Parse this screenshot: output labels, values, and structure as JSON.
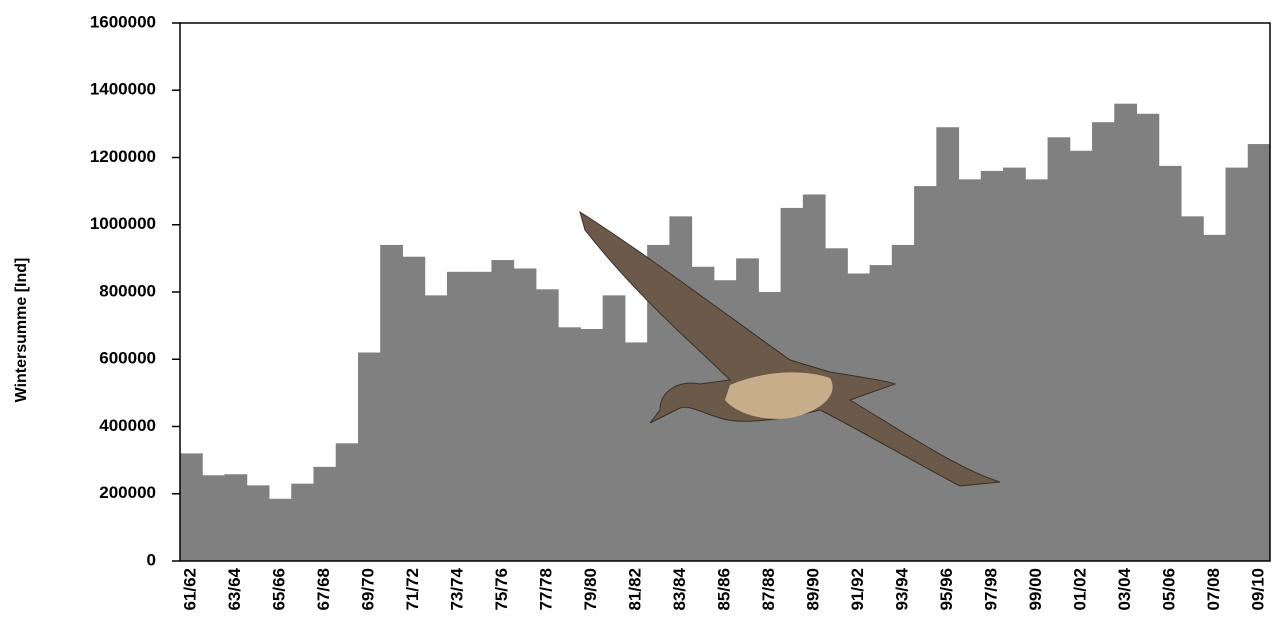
{
  "chart_data": {
    "type": "bar",
    "y_label": "Wintersumme [Ind]",
    "categories": [
      "61/62",
      null,
      "63/64",
      null,
      "65/66",
      null,
      "67/68",
      null,
      "69/70",
      null,
      "71/72",
      null,
      "73/74",
      null,
      "75/76",
      null,
      "77/78",
      null,
      "79/80",
      null,
      "81/82",
      null,
      "83/84",
      null,
      "85/86",
      null,
      "87/88",
      null,
      "89/90",
      null,
      "91/92",
      null,
      "93/94",
      null,
      "95/96",
      null,
      "97/98",
      null,
      "99/00",
      null,
      "01/02",
      null,
      "03/04",
      null,
      "05/06",
      null,
      "07/08",
      null,
      "09/10"
    ],
    "values": [
      320000,
      255000,
      258000,
      225000,
      185000,
      230000,
      280000,
      350000,
      620000,
      940000,
      905000,
      790000,
      860000,
      860000,
      895000,
      870000,
      808000,
      695000,
      690000,
      790000,
      650000,
      940000,
      1025000,
      875000,
      835000,
      900000,
      800000,
      1050000,
      1090000,
      930000,
      855000,
      880000,
      940000,
      1115000,
      1290000,
      1135000,
      1160000,
      1170000,
      1135000,
      1260000,
      1220000,
      1305000,
      1360000,
      1330000,
      1175000,
      1025000,
      970000,
      1170000,
      1240000
    ],
    "color": "#808080",
    "ylim": [
      0,
      1600000
    ],
    "yticks": [
      0,
      200000,
      400000,
      600000,
      800000,
      1000000,
      1200000,
      1400000,
      1600000
    ]
  }
}
